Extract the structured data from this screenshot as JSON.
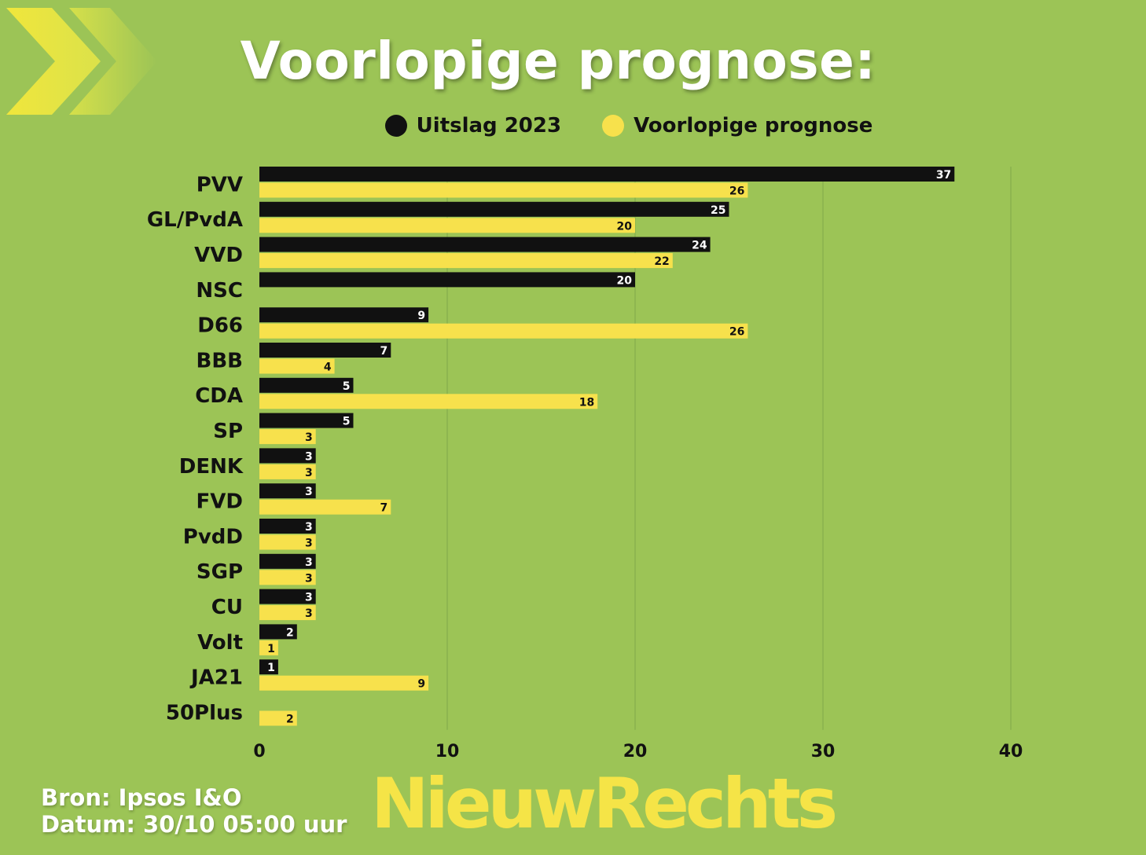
{
  "header": {
    "title": "Voorlopige prognose:"
  },
  "legend": [
    {
      "label": "Uitslag 2023",
      "color": "#111111"
    },
    {
      "label": "Voorlopige prognose",
      "color": "#f7e14c"
    }
  ],
  "footer": {
    "source": "Bron: Ipsos I&O",
    "date": "Datum: 30/10 05:00 uur",
    "logo": "NieuwRechts"
  },
  "colors": {
    "background": "#9cc456",
    "series_2023": "#111111",
    "series_prognose": "#f7e14c",
    "chevron": "#e6e64a"
  },
  "chart_data": {
    "type": "bar",
    "orientation": "horizontal",
    "title": "Voorlopige prognose:",
    "categories": [
      "PVV",
      "GL/PvdA",
      "VVD",
      "NSC",
      "D66",
      "BBB",
      "CDA",
      "SP",
      "DENK",
      "FVD",
      "PvdD",
      "SGP",
      "CU",
      "Volt",
      "JA21",
      "50Plus"
    ],
    "series": [
      {
        "name": "Uitslag 2023",
        "color": "#111111",
        "values": [
          37,
          25,
          24,
          20,
          9,
          7,
          5,
          5,
          3,
          3,
          3,
          3,
          3,
          2,
          1,
          null
        ]
      },
      {
        "name": "Voorlopige prognose",
        "color": "#f7e14c",
        "values": [
          26,
          20,
          22,
          null,
          26,
          4,
          18,
          3,
          3,
          7,
          3,
          3,
          3,
          1,
          9,
          2
        ]
      }
    ],
    "xlim": [
      0,
      40
    ],
    "xticks": [
      0,
      10,
      20,
      30,
      40
    ],
    "grid": true,
    "legend_position": "top"
  }
}
